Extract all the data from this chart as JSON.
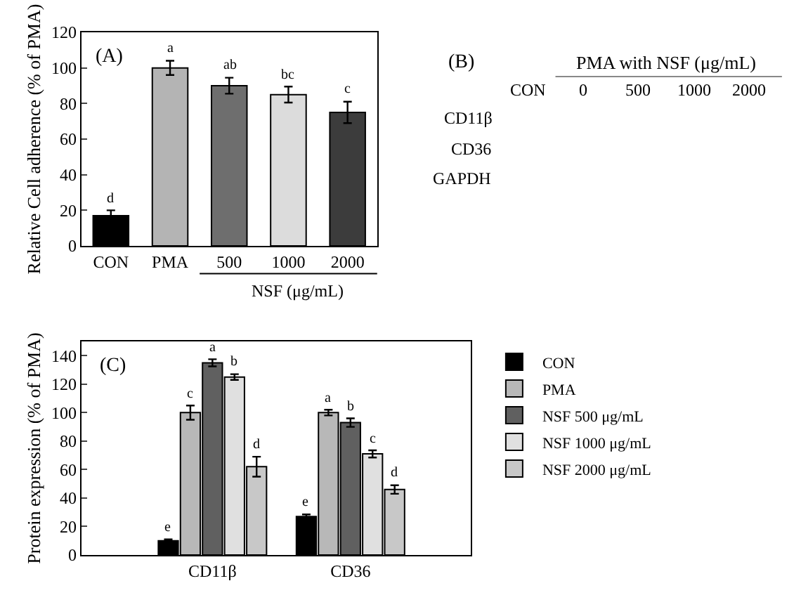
{
  "chart_data": [
    {
      "type": "bar",
      "title": "(A)",
      "ylabel": "Relative Cell adherence (% of PMA)",
      "categories": [
        "CON",
        "PMA",
        "500",
        "1000",
        "2000"
      ],
      "values": [
        17,
        100,
        90,
        85,
        75
      ],
      "colors": [
        "#000000",
        "#b4b4b4",
        "#6e6e6e",
        "#dcdcdc",
        "#3c3c3c"
      ],
      "errors": [
        3,
        4,
        4.5,
        4.5,
        6
      ],
      "value_labels": [
        "d",
        "a",
        "ab",
        "bc",
        "c"
      ],
      "annotations": [
        "NSF (μg/mL)"
      ],
      "ylim": [
        0,
        120
      ],
      "yticks": [
        0,
        20,
        40,
        60,
        80,
        100,
        120
      ]
    },
    {
      "type": "other",
      "title": "(B)",
      "xlabel": "PMA with NSF (μg/mL)",
      "categories": [
        "CON",
        "0",
        "500",
        "1000",
        "2000"
      ],
      "y_categories": [
        "CD11β",
        "CD36",
        "GAPDH"
      ]
    },
    {
      "type": "bar",
      "title": "(C)",
      "ylabel": "Protein expression (% of PMA)",
      "categories": [
        "CD11β",
        "CD36"
      ],
      "series": [
        {
          "name": "CON",
          "color": "#000000",
          "values": [
            10,
            27
          ],
          "errors": [
            1,
            1.5
          ],
          "value_labels": [
            "e",
            "e"
          ]
        },
        {
          "name": "PMA",
          "color": "#b8b8b8",
          "values": [
            100,
            100
          ],
          "errors": [
            5,
            2
          ],
          "value_labels": [
            "c",
            "a"
          ]
        },
        {
          "name": "NSF 500 μg/mL",
          "color": "#606060",
          "values": [
            135,
            93
          ],
          "errors": [
            2.5,
            3
          ],
          "value_labels": [
            "a",
            "b"
          ]
        },
        {
          "name": "NSF 1000 μg/mL",
          "color": "#e0e0e0",
          "values": [
            125,
            71
          ],
          "errors": [
            2,
            2.5
          ],
          "value_labels": [
            "b",
            "c"
          ]
        },
        {
          "name": "NSF 2000 μg/mL",
          "color": "#c8c8c8",
          "values": [
            62,
            46
          ],
          "errors": [
            7,
            3
          ],
          "value_labels": [
            "d",
            "d"
          ]
        }
      ],
      "ylim": [
        0,
        150
      ],
      "yticks": [
        0,
        20,
        40,
        60,
        80,
        100,
        120,
        140
      ],
      "legend": "top right"
    }
  ]
}
